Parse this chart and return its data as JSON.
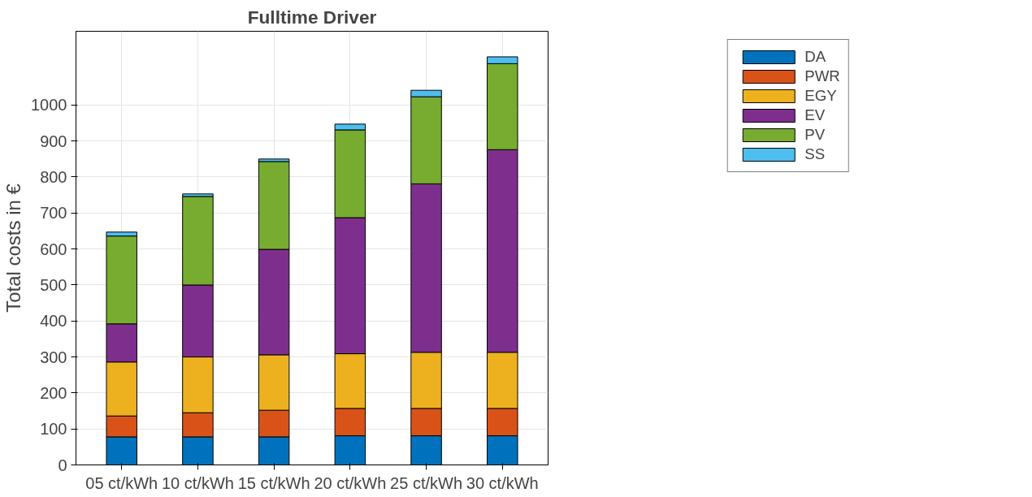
{
  "chart_data": {
    "type": "bar",
    "title": "Fulltime Driver",
    "ylabel": "Total costs in €",
    "stacked": true,
    "categories": [
      "05 ct/kWh",
      "10 ct/kWh",
      "15 ct/kWh",
      "20 ct/kWh",
      "25 ct/kWh",
      "30 ct/kWh"
    ],
    "series": [
      {
        "name": "DA",
        "color": "#0072bd",
        "values": [
          78,
          78,
          78,
          81,
          81,
          81
        ]
      },
      {
        "name": "PWR",
        "color": "#d95319",
        "values": [
          58,
          67,
          74,
          76,
          76,
          76
        ]
      },
      {
        "name": "EGY",
        "color": "#edb120",
        "values": [
          150,
          155,
          154,
          152,
          156,
          156
        ]
      },
      {
        "name": "EV",
        "color": "#7e2f8e",
        "values": [
          106,
          200,
          293,
          378,
          468,
          563
        ]
      },
      {
        "name": "PV",
        "color": "#77ac30",
        "values": [
          244,
          246,
          244,
          244,
          242,
          239
        ]
      },
      {
        "name": "SS",
        "color": "#4dbeee",
        "values": [
          11,
          7,
          7,
          16,
          18,
          19
        ]
      }
    ],
    "ylim": [
      0,
      1205
    ],
    "yticks": [
      0,
      100,
      200,
      300,
      400,
      500,
      600,
      700,
      800,
      900,
      1000
    ],
    "grid": true,
    "legend": "top right"
  }
}
